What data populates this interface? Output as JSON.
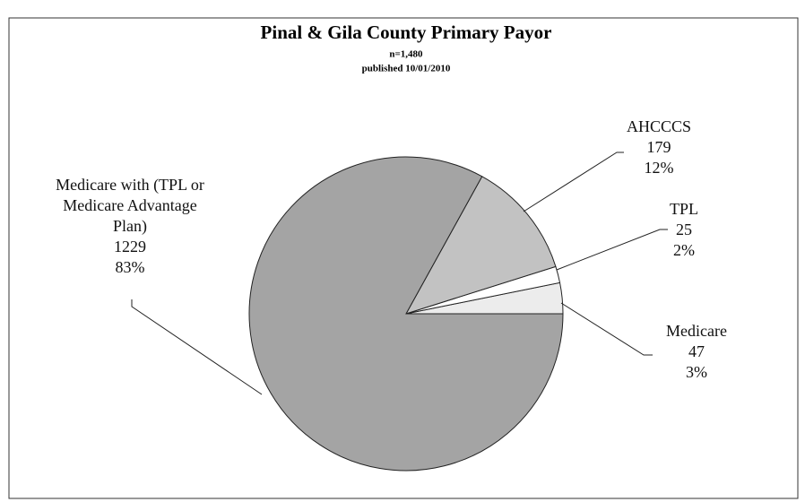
{
  "chart_data": {
    "type": "pie",
    "title": "Pinal & Gila County Primary Payor",
    "subtitle": "n=1,480",
    "note": "published 10/01/2010",
    "categories": [
      "Medicare",
      "TPL",
      "AHCCCS",
      "Medicare with (TPL or Medicare Advantage Plan)"
    ],
    "values": [
      47,
      25,
      179,
      1229
    ],
    "percent_labels": [
      "3%",
      "2%",
      "12%",
      "83%"
    ],
    "colors": [
      "#ececec",
      "#ffffff",
      "#c2c2c2",
      "#a4a4a4"
    ]
  }
}
